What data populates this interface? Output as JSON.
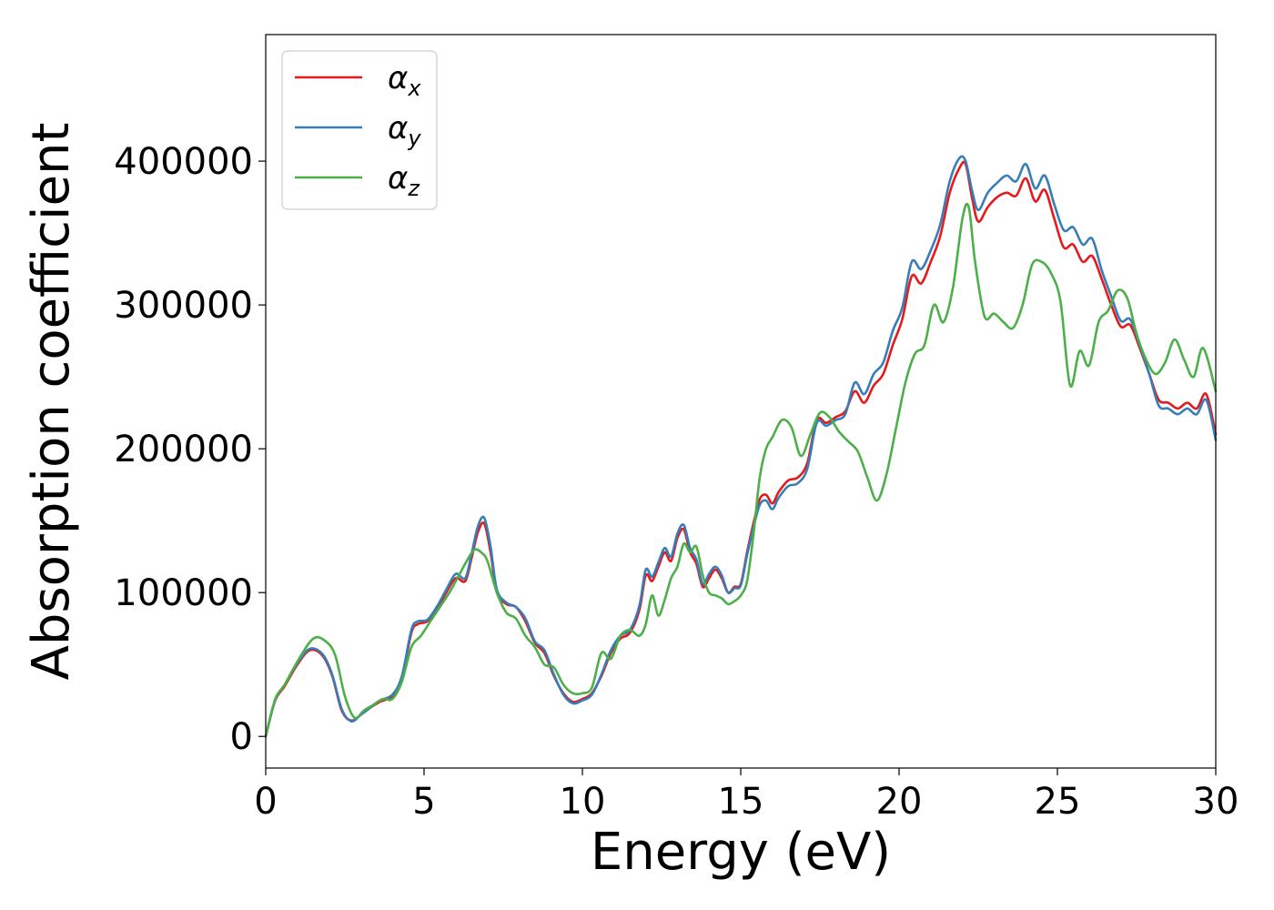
{
  "chart_data": {
    "type": "line",
    "title": "",
    "xlabel": "Energy (eV)",
    "ylabel": "Absorption coefficient",
    "xlim": [
      0,
      30
    ],
    "ylim": [
      -22000,
      488000
    ],
    "xticks": [
      0,
      5,
      10,
      15,
      20,
      25,
      30
    ],
    "xtick_labels": [
      "0",
      "5",
      "10",
      "15",
      "20",
      "25",
      "30"
    ],
    "yticks": [
      0,
      100000,
      200000,
      300000,
      400000
    ],
    "ytick_labels": [
      "0",
      "100000",
      "200000",
      "300000",
      "400000"
    ],
    "grid": false,
    "legend_position": "top-left",
    "series": [
      {
        "name": "α_x",
        "name_base": "α",
        "name_sub": "x",
        "color": "#e41a1c",
        "x": [
          0,
          0.3,
          0.6,
          1.0,
          1.4,
          1.8,
          2.1,
          2.4,
          2.7,
          3.0,
          3.3,
          3.6,
          4.0,
          4.3,
          4.6,
          4.8,
          5.1,
          5.4,
          5.7,
          6.0,
          6.3,
          6.5,
          6.7,
          6.9,
          7.1,
          7.3,
          7.6,
          7.9,
          8.2,
          8.5,
          8.8,
          9.1,
          9.4,
          9.7,
          10.0,
          10.3,
          10.6,
          10.9,
          11.2,
          11.5,
          11.8,
          12.0,
          12.2,
          12.4,
          12.6,
          12.8,
          13.0,
          13.2,
          13.4,
          13.6,
          13.8,
          14.0,
          14.2,
          14.4,
          14.6,
          14.8,
          15.0,
          15.2,
          15.4,
          15.6,
          15.8,
          16.0,
          16.2,
          16.5,
          16.8,
          17.1,
          17.4,
          17.7,
          18.0,
          18.3,
          18.6,
          18.9,
          19.2,
          19.5,
          19.8,
          20.1,
          20.4,
          20.7,
          21.0,
          21.3,
          21.6,
          21.9,
          22.1,
          22.3,
          22.5,
          22.8,
          23.1,
          23.4,
          23.7,
          24.0,
          24.3,
          24.6,
          24.9,
          25.2,
          25.5,
          25.8,
          26.1,
          26.4,
          26.7,
          27.0,
          27.3,
          27.6,
          27.9,
          28.2,
          28.5,
          28.8,
          29.1,
          29.4,
          29.7,
          30.0
        ],
        "values": [
          0,
          25000,
          35000,
          50000,
          60000,
          56000,
          42000,
          18000,
          11000,
          15000,
          20000,
          24000,
          28000,
          40000,
          72000,
          78000,
          80000,
          88000,
          100000,
          110000,
          108000,
          124000,
          142000,
          148000,
          128000,
          100000,
          92000,
          90000,
          80000,
          65000,
          58000,
          42000,
          30000,
          24000,
          26000,
          30000,
          42000,
          58000,
          68000,
          72000,
          88000,
          112000,
          108000,
          118000,
          128000,
          122000,
          138000,
          144000,
          128000,
          120000,
          104000,
          110000,
          116000,
          110000,
          100000,
          104000,
          106000,
          128000,
          148000,
          165000,
          168000,
          162000,
          170000,
          178000,
          180000,
          190000,
          220000,
          218000,
          222000,
          226000,
          240000,
          232000,
          244000,
          252000,
          272000,
          290000,
          320000,
          315000,
          330000,
          348000,
          378000,
          395000,
          398000,
          375000,
          358000,
          368000,
          375000,
          378000,
          376000,
          388000,
          372000,
          380000,
          360000,
          340000,
          342000,
          330000,
          334000,
          318000,
          300000,
          285000,
          286000,
          270000,
          252000,
          234000,
          232000,
          228000,
          232000,
          228000,
          238000,
          210000
        ]
      },
      {
        "name": "α_y",
        "name_base": "α",
        "name_sub": "y",
        "color": "#377eb8",
        "x": [
          0,
          0.3,
          0.6,
          1.0,
          1.4,
          1.8,
          2.1,
          2.4,
          2.7,
          3.0,
          3.3,
          3.6,
          4.0,
          4.3,
          4.6,
          4.8,
          5.1,
          5.4,
          5.7,
          6.0,
          6.3,
          6.5,
          6.7,
          6.9,
          7.1,
          7.3,
          7.6,
          7.9,
          8.2,
          8.5,
          8.8,
          9.1,
          9.4,
          9.7,
          10.0,
          10.3,
          10.6,
          10.9,
          11.2,
          11.5,
          11.8,
          12.0,
          12.2,
          12.4,
          12.6,
          12.8,
          13.0,
          13.2,
          13.4,
          13.6,
          13.8,
          14.0,
          14.2,
          14.4,
          14.6,
          14.8,
          15.0,
          15.2,
          15.4,
          15.6,
          15.8,
          16.0,
          16.2,
          16.5,
          16.8,
          17.1,
          17.4,
          17.7,
          18.0,
          18.3,
          18.6,
          18.9,
          19.2,
          19.5,
          19.8,
          20.1,
          20.4,
          20.7,
          21.0,
          21.3,
          21.6,
          21.9,
          22.1,
          22.3,
          22.5,
          22.8,
          23.1,
          23.4,
          23.7,
          24.0,
          24.3,
          24.6,
          24.9,
          25.2,
          25.5,
          25.8,
          26.1,
          26.4,
          26.7,
          27.0,
          27.3,
          27.6,
          27.9,
          28.2,
          28.5,
          28.8,
          29.1,
          29.4,
          29.7,
          30.0
        ],
        "values": [
          0,
          25500,
          36000,
          51000,
          61000,
          57000,
          43000,
          19000,
          10500,
          15000,
          20000,
          25000,
          29000,
          42000,
          74000,
          80000,
          81000,
          90000,
          102000,
          113000,
          110000,
          127000,
          146000,
          152000,
          132000,
          102000,
          93000,
          90000,
          82000,
          66000,
          60000,
          43000,
          29000,
          23000,
          25000,
          29000,
          43000,
          60000,
          70000,
          74000,
          91000,
          116000,
          111000,
          121000,
          131000,
          125000,
          141000,
          147000,
          131000,
          123000,
          106000,
          113000,
          118000,
          112000,
          100000,
          103000,
          105000,
          126000,
          145000,
          161000,
          164000,
          158000,
          166000,
          174000,
          176000,
          186000,
          218000,
          216000,
          220000,
          224000,
          246000,
          238000,
          252000,
          260000,
          282000,
          298000,
          330000,
          325000,
          338000,
          356000,
          386000,
          402000,
          400000,
          380000,
          366000,
          378000,
          385000,
          390000,
          386000,
          398000,
          381000,
          390000,
          370000,
          352000,
          354000,
          342000,
          346000,
          324000,
          306000,
          289000,
          290000,
          272000,
          252000,
          230000,
          228000,
          224000,
          228000,
          224000,
          234000,
          206000
        ]
      },
      {
        "name": "α_z",
        "name_base": "α",
        "name_sub": "z",
        "color": "#4daf4a",
        "x": [
          0,
          0.3,
          0.6,
          1.0,
          1.5,
          1.9,
          2.2,
          2.5,
          2.8,
          3.1,
          3.4,
          3.7,
          4.0,
          4.3,
          4.6,
          4.9,
          5.2,
          5.5,
          5.8,
          6.1,
          6.4,
          6.6,
          6.8,
          7.0,
          7.3,
          7.6,
          7.9,
          8.2,
          8.5,
          8.8,
          9.1,
          9.4,
          9.7,
          10.0,
          10.3,
          10.6,
          10.9,
          11.2,
          11.5,
          11.8,
          12.0,
          12.2,
          12.4,
          12.6,
          12.8,
          13.0,
          13.2,
          13.4,
          13.6,
          13.8,
          14.0,
          14.2,
          14.4,
          14.6,
          14.8,
          15.0,
          15.2,
          15.4,
          15.6,
          15.8,
          16.0,
          16.3,
          16.6,
          16.9,
          17.2,
          17.5,
          17.8,
          18.1,
          18.4,
          18.7,
          19.0,
          19.3,
          19.6,
          19.9,
          20.2,
          20.5,
          20.8,
          21.1,
          21.4,
          21.7,
          22.0,
          22.2,
          22.4,
          22.7,
          23.0,
          23.3,
          23.6,
          23.9,
          24.2,
          24.5,
          24.8,
          25.1,
          25.4,
          25.7,
          26.0,
          26.3,
          26.6,
          26.9,
          27.2,
          27.5,
          27.8,
          28.1,
          28.4,
          28.7,
          29.0,
          29.3,
          29.6,
          30.0
        ],
        "values": [
          0,
          26000,
          36000,
          52000,
          68000,
          66000,
          56000,
          28000,
          13000,
          18000,
          22000,
          26000,
          26000,
          38000,
          62000,
          70000,
          80000,
          90000,
          100000,
          112000,
          124000,
          130000,
          128000,
          122000,
          100000,
          86000,
          82000,
          70000,
          62000,
          50000,
          48000,
          36000,
          30000,
          30000,
          34000,
          58000,
          54000,
          70000,
          74000,
          70000,
          78000,
          98000,
          84000,
          95000,
          110000,
          118000,
          134000,
          128000,
          132000,
          112000,
          100000,
          98000,
          96000,
          92000,
          94000,
          98000,
          108000,
          140000,
          180000,
          200000,
          208000,
          220000,
          215000,
          195000,
          210000,
          225000,
          222000,
          212000,
          205000,
          198000,
          180000,
          164000,
          182000,
          214000,
          246000,
          266000,
          272000,
          300000,
          288000,
          312000,
          360000,
          368000,
          330000,
          292000,
          294000,
          288000,
          284000,
          300000,
          328000,
          330000,
          322000,
          302000,
          244000,
          268000,
          258000,
          288000,
          296000,
          310000,
          305000,
          280000,
          262000,
          252000,
          260000,
          276000,
          262000,
          250000,
          270000,
          240000
        ]
      }
    ]
  }
}
